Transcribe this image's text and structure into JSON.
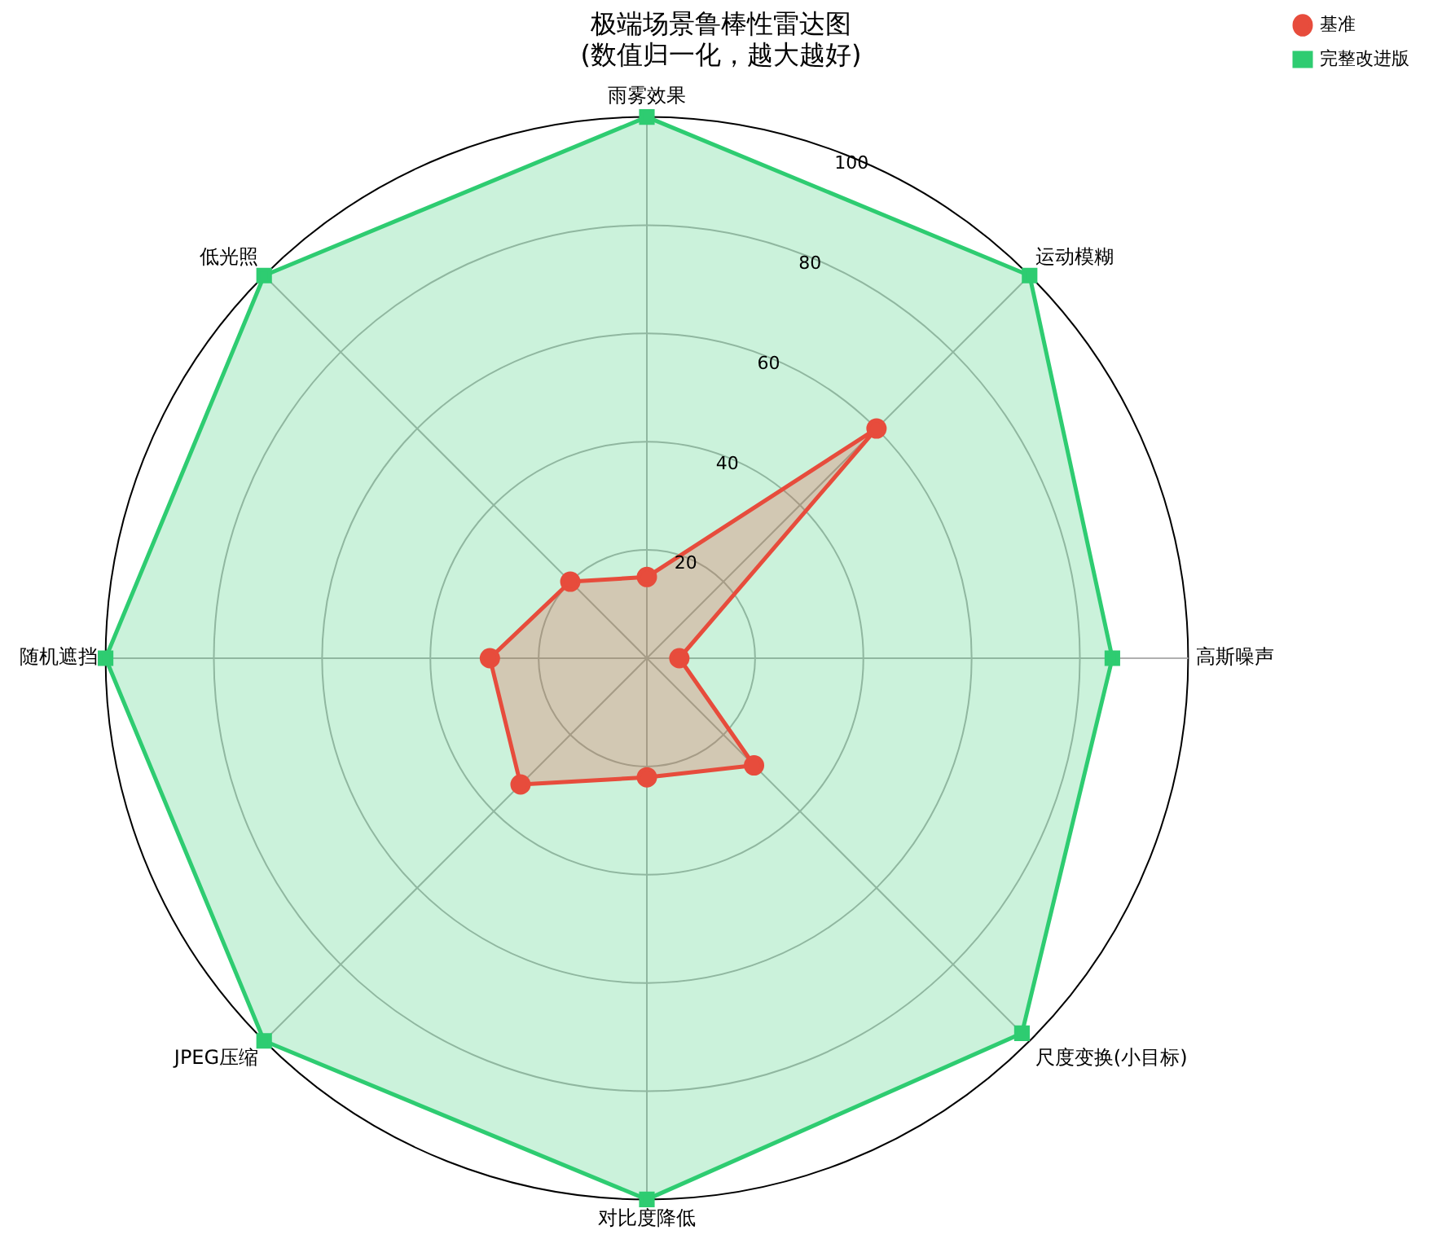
{
  "chart_data": {
    "type": "radar",
    "title": "极端场景鲁棒性雷达图\n(数值归一化，越大越好)",
    "categories": [
      "雨雾效果",
      "运动模糊",
      "高斯噪声",
      "尺度变换(小目标)",
      "对比度降低",
      "JPEG压缩",
      "随机遮挡",
      "低光照"
    ],
    "series": [
      {
        "name": "基准",
        "color": "#e74c3c",
        "marker": "circle",
        "values": [
          15,
          60,
          6,
          28,
          22,
          33,
          29,
          20
        ]
      },
      {
        "name": "完整改进版",
        "color": "#2ecc71",
        "marker": "square",
        "values": [
          100,
          100,
          86,
          98,
          100,
          100,
          100,
          100
        ]
      }
    ],
    "ylim": [
      0,
      100
    ],
    "yticks": [
      20,
      40,
      60,
      80,
      100
    ],
    "grid": true,
    "legend": "top right"
  }
}
